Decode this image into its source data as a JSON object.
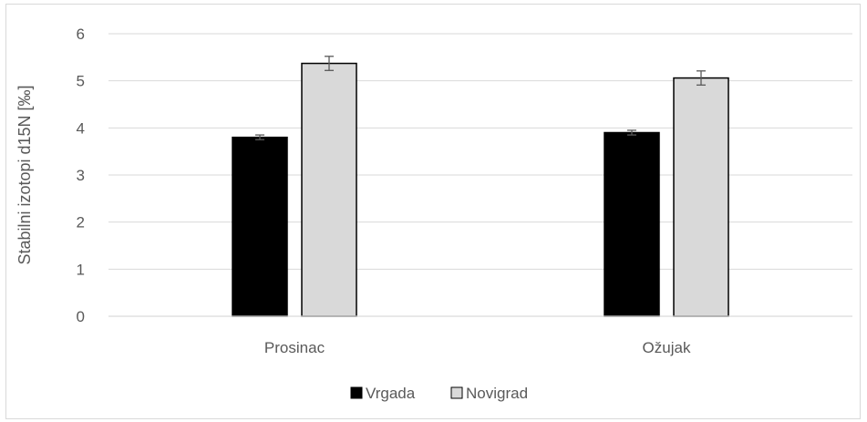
{
  "chart_data": {
    "type": "bar",
    "title": "",
    "xlabel": "",
    "ylabel": "Stabilni izotopi  d15N [‰]",
    "categories": [
      "Prosinac",
      "Ožujak"
    ],
    "series": [
      {
        "name": "Vrgada",
        "values": [
          3.8,
          3.9
        ],
        "errors": [
          0.05,
          0.05
        ],
        "color": "#000000"
      },
      {
        "name": "Novigrad",
        "values": [
          5.37,
          5.06
        ],
        "errors": [
          0.15,
          0.15
        ],
        "color": "#d9d9d9"
      }
    ],
    "ylim": [
      0,
      6
    ],
    "yticks": [
      0,
      1,
      2,
      3,
      4,
      5,
      6
    ],
    "grid": true,
    "legend": "bottom-center",
    "bar_edge_color": "#000000"
  }
}
